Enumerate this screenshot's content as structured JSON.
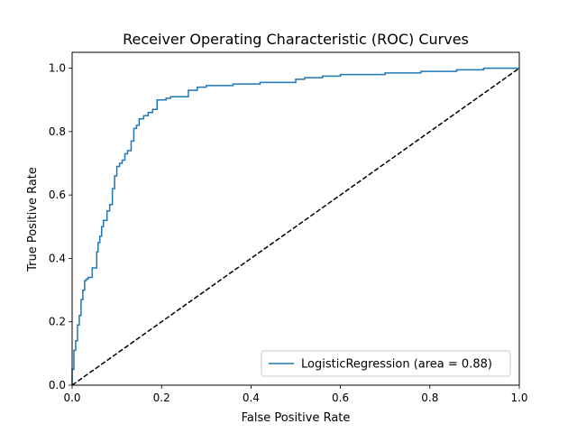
{
  "chart_data": {
    "type": "line",
    "title": "Receiver Operating Characteristic (ROC) Curves",
    "xlabel": "False Positive Rate",
    "ylabel": "True Positive Rate",
    "xlim": [
      0.0,
      1.0
    ],
    "ylim": [
      0.0,
      1.05
    ],
    "x_ticks": [
      "0.0",
      "0.2",
      "0.4",
      "0.6",
      "0.8",
      "1.0"
    ],
    "y_ticks": [
      "0.0",
      "0.2",
      "0.4",
      "0.6",
      "0.8",
      "1.0"
    ],
    "grid": false,
    "legend_position": "lower right",
    "series": [
      {
        "name": "LogisticRegression (area = 0.88)",
        "color": "#1f77b4",
        "style": "solid",
        "x": [
          0.0,
          0.0,
          0.004,
          0.004,
          0.008,
          0.008,
          0.012,
          0.012,
          0.016,
          0.016,
          0.02,
          0.02,
          0.024,
          0.024,
          0.028,
          0.028,
          0.032,
          0.032,
          0.036,
          0.036,
          0.045,
          0.045,
          0.055,
          0.055,
          0.058,
          0.058,
          0.062,
          0.062,
          0.066,
          0.066,
          0.07,
          0.07,
          0.078,
          0.078,
          0.084,
          0.084,
          0.09,
          0.09,
          0.095,
          0.095,
          0.1,
          0.1,
          0.106,
          0.106,
          0.112,
          0.112,
          0.118,
          0.118,
          0.124,
          0.124,
          0.132,
          0.132,
          0.138,
          0.138,
          0.144,
          0.144,
          0.15,
          0.15,
          0.16,
          0.16,
          0.17,
          0.17,
          0.18,
          0.18,
          0.19,
          0.19,
          0.21,
          0.21,
          0.22,
          0.22,
          0.26,
          0.26,
          0.28,
          0.28,
          0.3,
          0.3,
          0.36,
          0.36,
          0.42,
          0.42,
          0.5,
          0.5,
          0.52,
          0.52,
          0.56,
          0.56,
          0.6,
          0.6,
          0.7,
          0.7,
          0.78,
          0.78,
          0.86,
          0.86,
          0.92,
          0.92,
          1.0
        ],
        "y": [
          0.0,
          0.05,
          0.05,
          0.11,
          0.11,
          0.14,
          0.14,
          0.19,
          0.19,
          0.22,
          0.22,
          0.27,
          0.27,
          0.3,
          0.3,
          0.33,
          0.33,
          0.335,
          0.335,
          0.34,
          0.34,
          0.37,
          0.37,
          0.42,
          0.42,
          0.45,
          0.45,
          0.47,
          0.47,
          0.5,
          0.5,
          0.52,
          0.52,
          0.55,
          0.55,
          0.57,
          0.57,
          0.62,
          0.62,
          0.66,
          0.66,
          0.69,
          0.69,
          0.7,
          0.7,
          0.71,
          0.71,
          0.73,
          0.73,
          0.74,
          0.74,
          0.77,
          0.77,
          0.81,
          0.81,
          0.82,
          0.82,
          0.84,
          0.84,
          0.85,
          0.85,
          0.86,
          0.86,
          0.87,
          0.87,
          0.9,
          0.9,
          0.905,
          0.905,
          0.91,
          0.91,
          0.93,
          0.93,
          0.94,
          0.94,
          0.945,
          0.945,
          0.95,
          0.95,
          0.955,
          0.955,
          0.965,
          0.965,
          0.97,
          0.97,
          0.975,
          0.975,
          0.98,
          0.98,
          0.985,
          0.985,
          0.99,
          0.99,
          0.995,
          0.995,
          1.0,
          1.0
        ]
      },
      {
        "name": "",
        "color": "#000000",
        "style": "dashed",
        "x": [
          0.0,
          1.0
        ],
        "y": [
          0.0,
          1.0
        ]
      }
    ]
  }
}
